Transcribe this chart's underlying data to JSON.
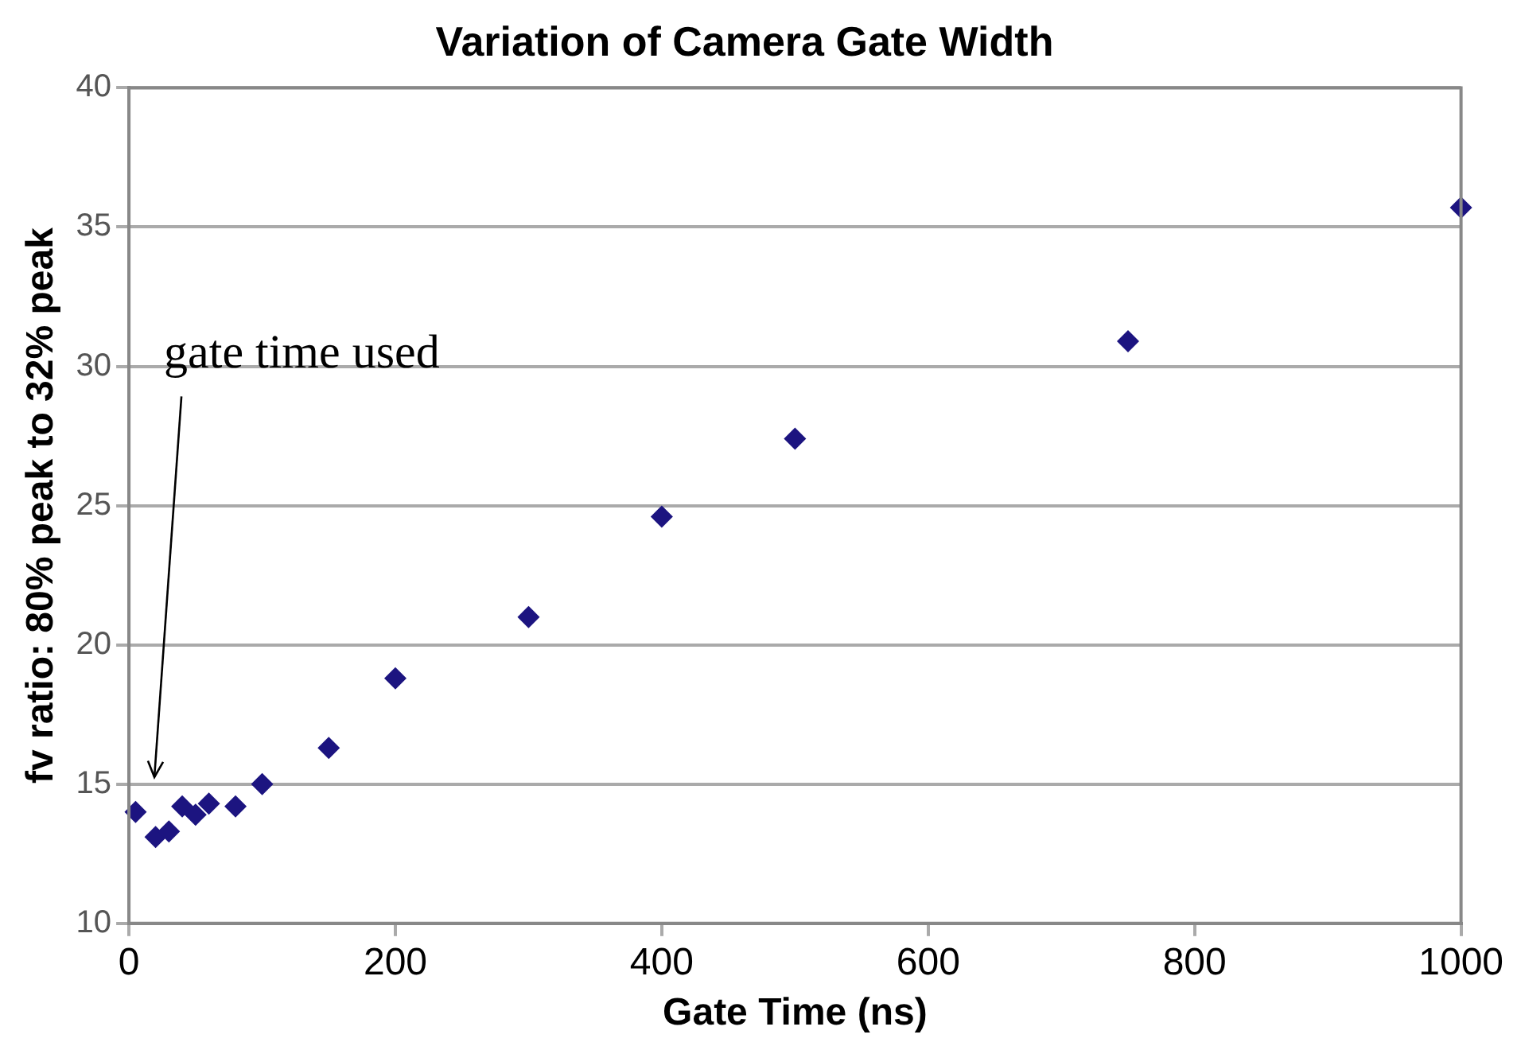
{
  "chart_data": {
    "type": "scatter",
    "title": "Variation of Camera Gate Width",
    "xlabel": "Gate Time (ns)",
    "ylabel": "fv ratio: 80% peak to 32% peak",
    "x": [
      5,
      20,
      30,
      40,
      50,
      60,
      80,
      100,
      150,
      200,
      300,
      400,
      500,
      750,
      1000
    ],
    "series": [
      {
        "color": "#1c1480",
        "values": [
          14.0,
          13.1,
          13.3,
          14.2,
          13.9,
          14.3,
          14.2,
          15.0,
          16.3,
          18.8,
          21.0,
          24.6,
          27.4,
          30.9,
          35.7
        ]
      }
    ],
    "xlim": [
      0,
      1000
    ],
    "xticks": [
      0,
      200,
      400,
      600,
      800,
      1000
    ],
    "ylim": [
      10,
      40
    ],
    "yticks": [
      10,
      15,
      20,
      25,
      30,
      35,
      40
    ],
    "grid": "y",
    "legend": false,
    "marker": "diamond",
    "annotations": [
      "gate time used"
    ]
  }
}
